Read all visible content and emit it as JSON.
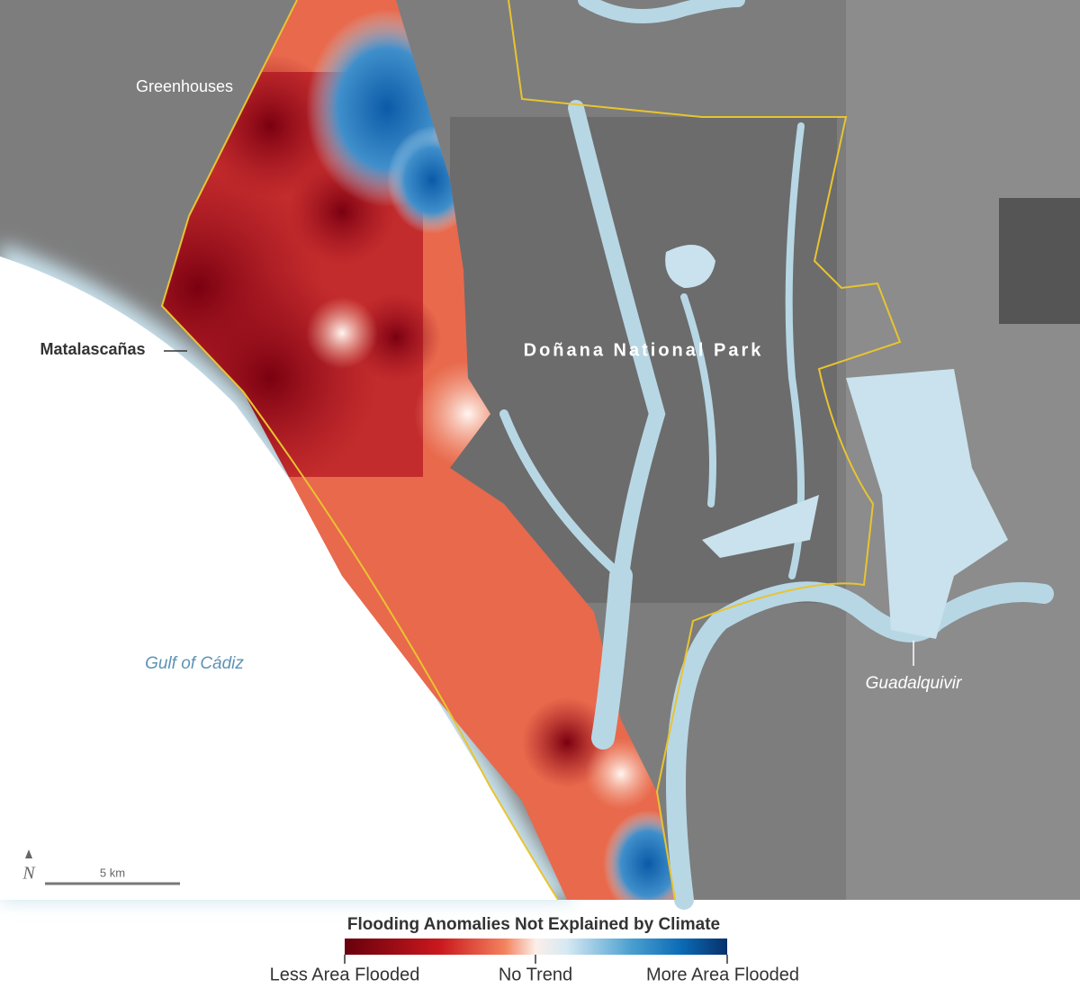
{
  "map": {
    "labels": [
      "Greenhouses",
      "Matalascañas",
      "Doñana National Park",
      "Gulf of Cádiz",
      "Guadalquivir"
    ],
    "north_arrow": "N",
    "scale_bar": "5 km"
  },
  "legend": {
    "title": "Flooding Anomalies Not Explained by Climate",
    "labels": [
      "Less Area Flooded",
      "No Trend",
      "More Area Flooded"
    ]
  }
}
